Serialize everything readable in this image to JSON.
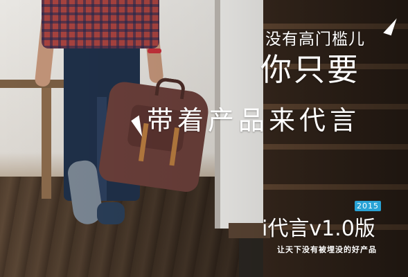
{
  "headline": {
    "line1": "没有高门槛儿",
    "line2": "你只要",
    "line3": "带着产品来代言"
  },
  "badge": {
    "year": "2015",
    "color": "#29a3d6"
  },
  "product": {
    "name": "i代言v1.0版"
  },
  "slogan": "让天下没有被埋没的好产品",
  "decorations": [
    "corner-accent-icon",
    "corner-accent-icon"
  ]
}
